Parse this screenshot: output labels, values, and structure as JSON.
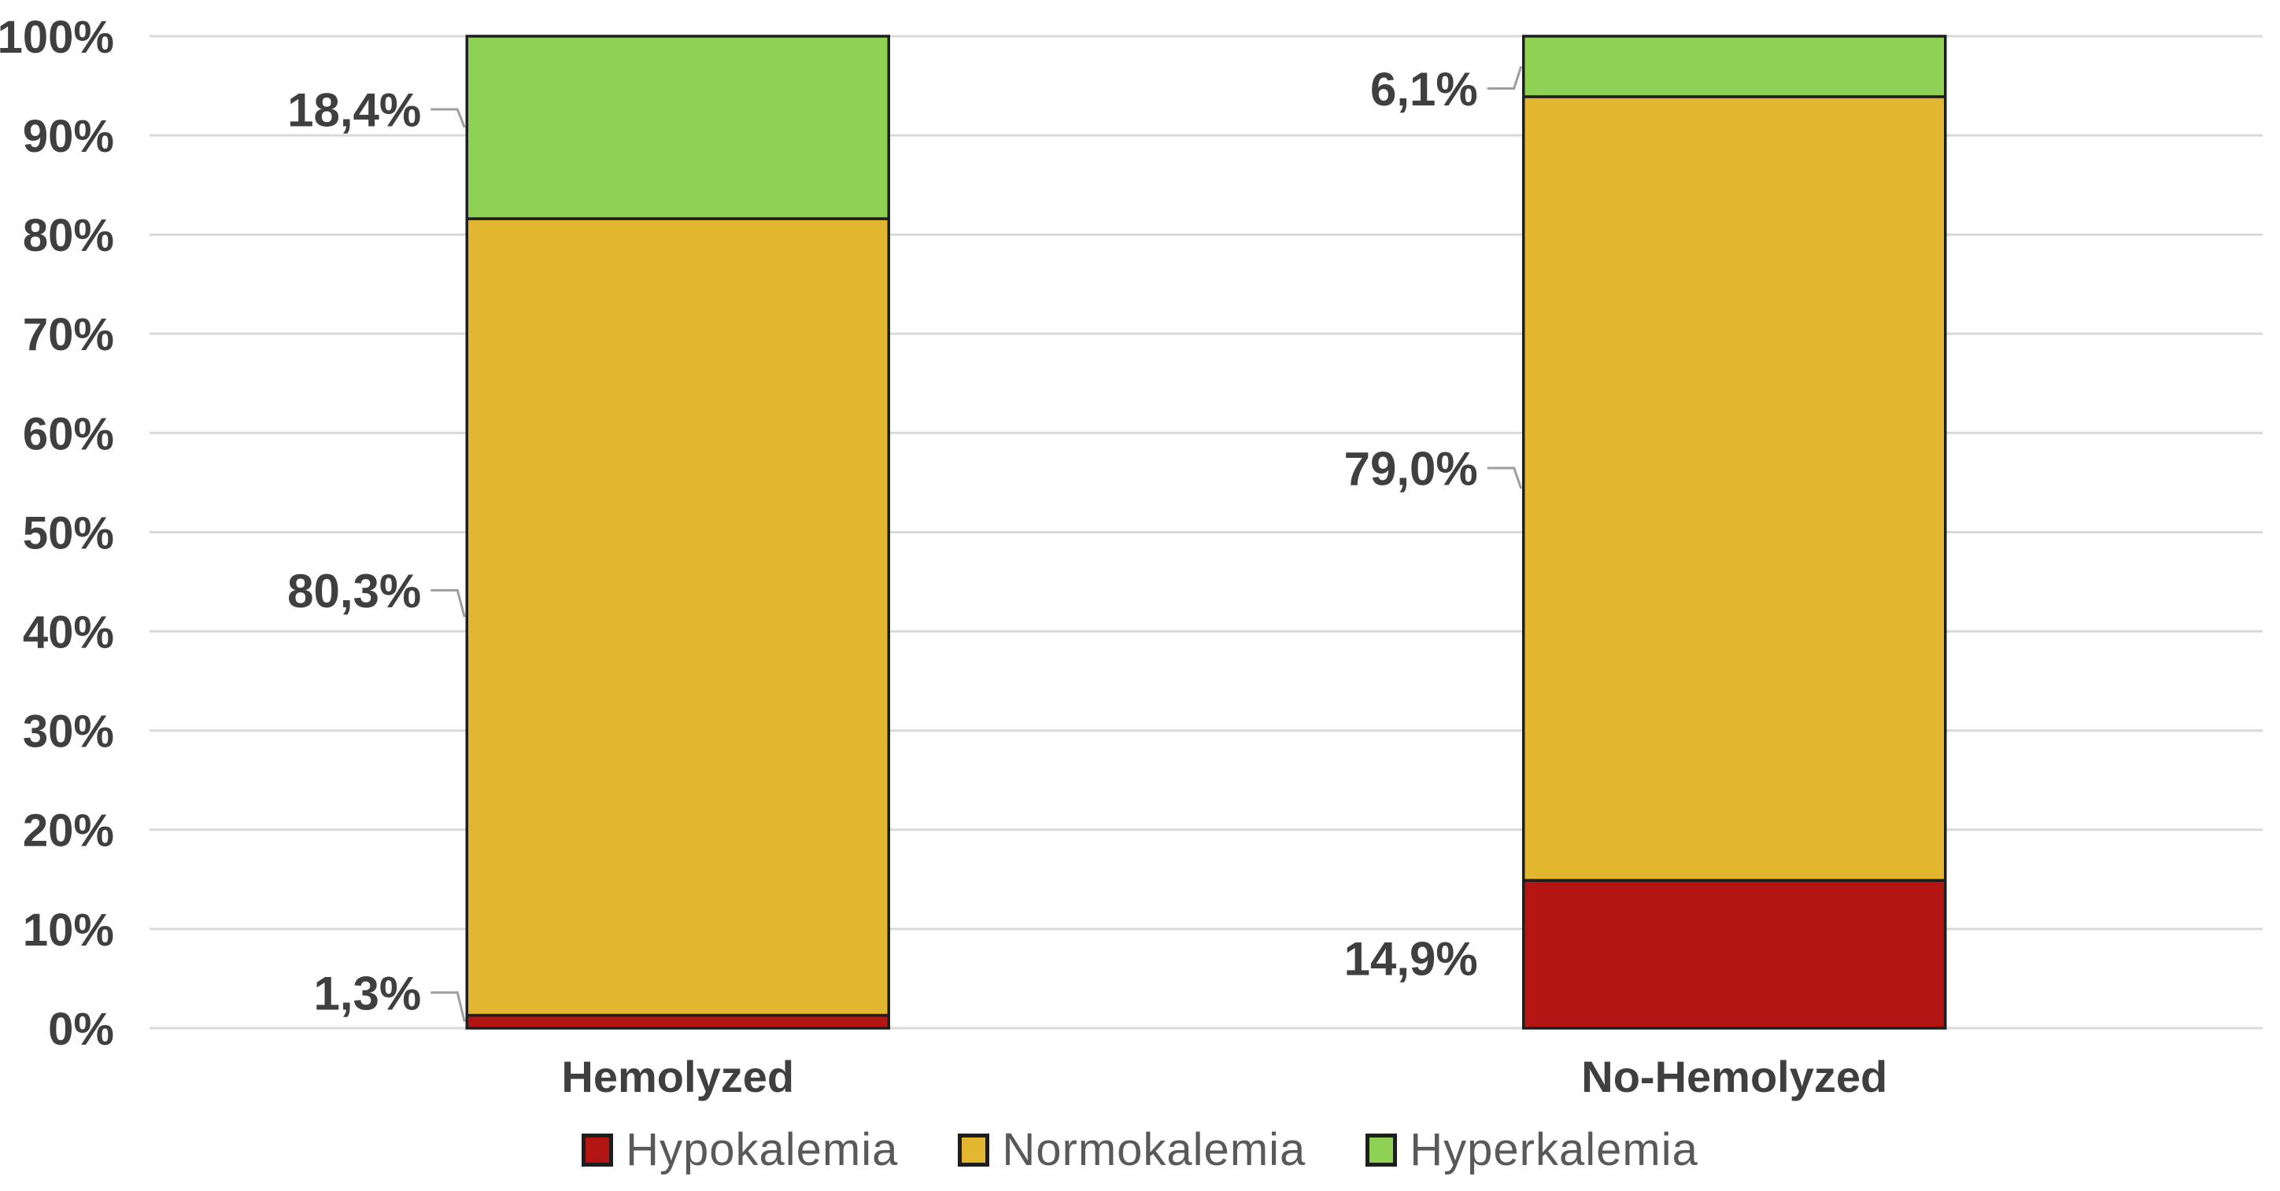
{
  "styles": {
    "background": "#FFFFFF",
    "text_color": "#3F3F3F",
    "legend_text_color": "#595959",
    "gridline_color": "#D9D9D9",
    "segment_border_color": "#1E1E1E",
    "leader_line_color": "#9E9E9E"
  },
  "chart_data": {
    "type": "bar",
    "variant": "100-percent-stacked-column",
    "title": "",
    "xlabel": "",
    "ylabel": "",
    "categories": [
      "Hemolyzed",
      "No-Hemolyzed"
    ],
    "series": [
      {
        "name": "Hypokalemia",
        "color": "#B21512",
        "values": [
          1.3,
          14.9
        ],
        "display_labels": [
          "1,3%",
          "14,9%"
        ],
        "label_has_leader": [
          true,
          false
        ],
        "label_dy": [
          -37,
          5
        ]
      },
      {
        "name": "Normokalemia",
        "color": "#E2B62F",
        "values": [
          80.3,
          79.0
        ],
        "display_labels": [
          "80,3%",
          "79,0%"
        ],
        "label_has_leader": [
          true,
          true
        ],
        "label_dy": [
          -34,
          -26
        ]
      },
      {
        "name": "Hyperkalemia",
        "color": "#8ED154",
        "values": [
          18.4,
          6.1
        ],
        "display_labels": [
          "18,4%",
          "6,1%"
        ],
        "label_has_leader": [
          true,
          true
        ],
        "label_dy": [
          -23,
          28
        ]
      }
    ],
    "ylim": [
      0,
      100
    ],
    "ytick_labels": [
      "0%",
      "10%",
      "20%",
      "30%",
      "40%",
      "50%",
      "60%",
      "70%",
      "80%",
      "90%",
      "100%"
    ],
    "grid": true,
    "legend_position": "bottom"
  }
}
